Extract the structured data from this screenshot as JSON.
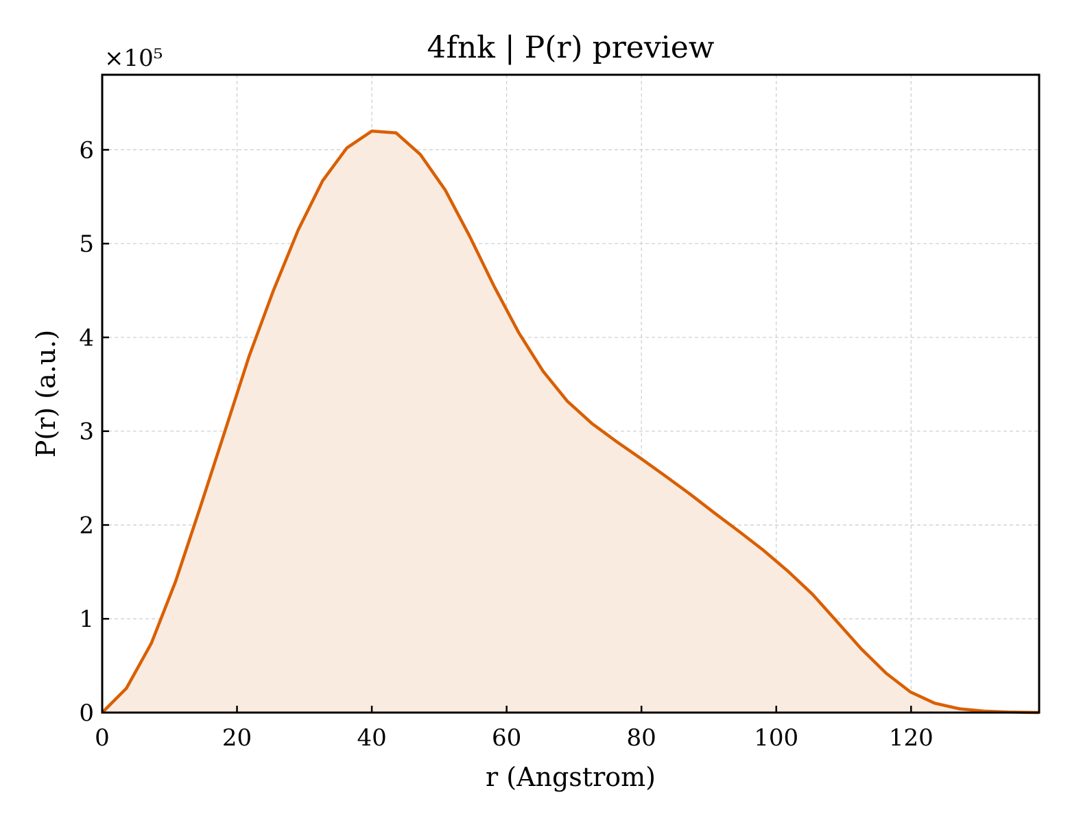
{
  "chart_data": {
    "type": "area",
    "title": "4fnk | P(r) preview",
    "xlabel": "r (Angstrom)",
    "ylabel": "P(r) (a.u.)",
    "y_offset_label": "×10⁵",
    "xlim": [
      0,
      139
    ],
    "ylim": [
      0,
      6.8
    ],
    "x_ticks": [
      0,
      20,
      40,
      60,
      80,
      100,
      120
    ],
    "y_ticks": [
      0,
      1,
      2,
      3,
      4,
      5,
      6
    ],
    "grid": true,
    "legend": "none",
    "colors": {
      "line": "#d95f02",
      "fill": "#f9ebe0"
    },
    "series": [
      {
        "x": [
          0,
          3.6,
          7.3,
          10.9,
          14.5,
          18.2,
          21.8,
          25.4,
          29.1,
          32.7,
          36.3,
          40.0,
          43.6,
          47.2,
          50.9,
          54.5,
          58.1,
          61.8,
          65.4,
          69.0,
          72.7,
          76.3,
          79.9,
          83.6,
          87.2,
          90.8,
          94.5,
          98.1,
          101.7,
          105.4,
          109.0,
          112.6,
          116.3,
          119.9,
          123.5,
          127.2,
          130.8,
          134.4,
          139.0
        ],
        "y": [
          0.0,
          0.26,
          0.74,
          1.4,
          2.18,
          3.0,
          3.8,
          4.5,
          5.15,
          5.67,
          6.02,
          6.2,
          6.18,
          5.95,
          5.57,
          5.08,
          4.55,
          4.05,
          3.64,
          3.32,
          3.08,
          2.89,
          2.71,
          2.52,
          2.33,
          2.13,
          1.93,
          1.73,
          1.51,
          1.26,
          0.97,
          0.68,
          0.42,
          0.22,
          0.1,
          0.04,
          0.015,
          0.005,
          0.0
        ]
      }
    ]
  }
}
